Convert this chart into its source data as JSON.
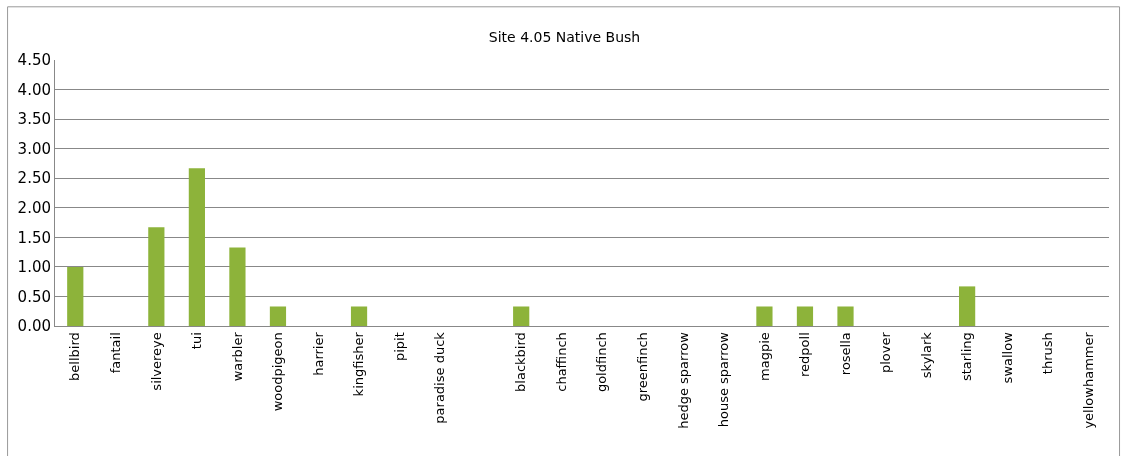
{
  "chart_data": {
    "type": "bar",
    "title": "Site 4.05 Native Bush",
    "categories": [
      "bellbird",
      "fantail",
      "silvereye",
      "tui",
      "warbler",
      "woodpigeon",
      "harrier",
      "kingfisher",
      "pipit",
      "paradise duck",
      null,
      "blackbird",
      "chaffinch",
      "goldfinch",
      "greenfinch",
      "hedge sparrow",
      "house sparrow",
      "magpie",
      "redpoll",
      "rosella",
      "plover",
      "skylark",
      "starling",
      "swallow",
      "thrush",
      "yellowhammer"
    ],
    "values": [
      1.0,
      0,
      1.67,
      2.67,
      1.33,
      0.33,
      0,
      0.33,
      0,
      0,
      0,
      0.33,
      0,
      0,
      0,
      0,
      0,
      0.33,
      0.33,
      0.33,
      0,
      0,
      0.67,
      0,
      0,
      0
    ],
    "color": "#8db33a",
    "ylim": [
      0,
      4.5
    ],
    "yticks": [
      {
        "value": 0,
        "label": "0.00"
      },
      {
        "value": 0.5,
        "label": "0.50"
      },
      {
        "value": 1,
        "label": "1.00"
      },
      {
        "value": 1.5,
        "label": "1.50"
      },
      {
        "value": 2,
        "label": "2.00"
      },
      {
        "value": 2.5,
        "label": "2.50"
      },
      {
        "value": 3,
        "label": "3.00"
      },
      {
        "value": 3.5,
        "label": "3.50"
      },
      {
        "value": 4,
        "label": "4.00"
      },
      {
        "value": 4.5,
        "label": "4.50"
      }
    ],
    "grid": "y",
    "legend": false
  }
}
